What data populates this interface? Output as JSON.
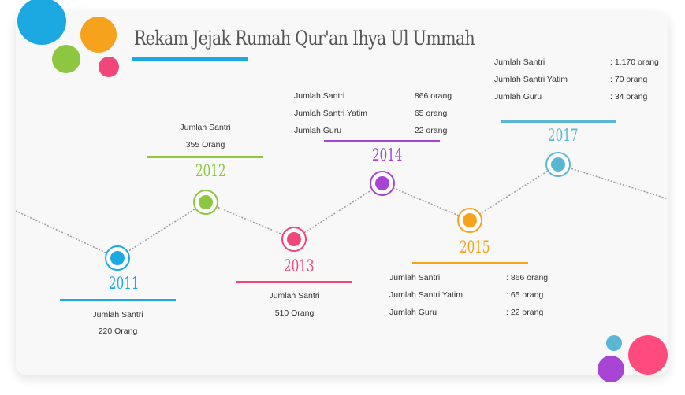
{
  "title": "Rekam Jejak Rumah Qur'an Ihya Ul Ummah",
  "colors": {
    "y2011": "#1ca9e1",
    "y2012": "#8dc63f",
    "y2013": "#f0467a",
    "y2014": "#a744d4",
    "y2015": "#f7a21c",
    "y2017": "#5ab7d4",
    "line": "#999999"
  },
  "milestones": [
    {
      "year": "2011",
      "lines": [
        "Jumlah Santri",
        "220 Orang"
      ]
    },
    {
      "year": "2012",
      "lines": [
        "Jumlah Santri",
        "355 Orang"
      ]
    },
    {
      "year": "2013",
      "lines": [
        "Jumlah Santri",
        "510 Orang"
      ]
    },
    {
      "year": "2014",
      "rows": [
        {
          "label": "Jumlah Santri",
          "value": ": 866 orang"
        },
        {
          "label": "Jumlah Santri Yatim",
          "value": ": 65 orang"
        },
        {
          "label": "Jumlah Guru",
          "value": ": 22 orang"
        }
      ]
    },
    {
      "year": "2015",
      "rows": [
        {
          "label": "Jumlah Santri",
          "value": ": 866 orang"
        },
        {
          "label": "Jumlah Santri Yatim",
          "value": ": 65 orang"
        },
        {
          "label": "Jumlah Guru",
          "value": ": 22 orang"
        }
      ]
    },
    {
      "year": "2017",
      "rows": [
        {
          "label": "Jumlah Santri",
          "value": ": 1.170 orang"
        },
        {
          "label": "Jumlah Santri Yatim",
          "value": ": 70 orang"
        },
        {
          "label": "Jumlah Guru",
          "value": ": 34 orang"
        }
      ]
    }
  ]
}
